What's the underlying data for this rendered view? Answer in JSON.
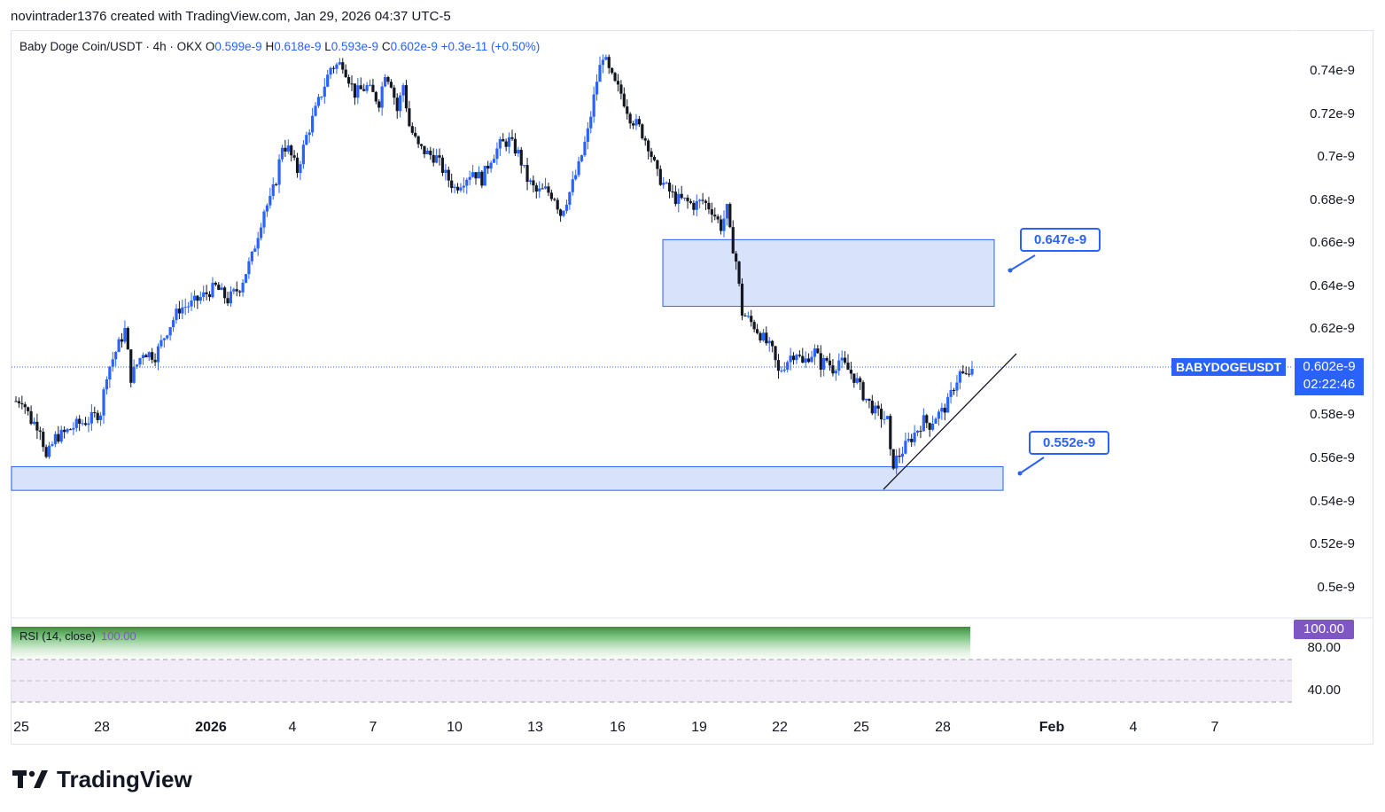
{
  "header": {
    "text": "novintrader1376 created with TradingView.com, Jan 29, 2026 04:37 UTC-5"
  },
  "legend": {
    "symbol": "Baby Doge Coin/USDT · 4h · OKX",
    "open_label": "O",
    "open": "0.599e-9",
    "high_label": "H",
    "high": "0.618e-9",
    "low_label": "L",
    "low": "0.593e-9",
    "close_label": "C",
    "close": "0.602e-9",
    "change": "+0.3e-11 (+0.50%)"
  },
  "rsi": {
    "label": "RSI (14, close)",
    "value": "100.00",
    "badge": "100.00",
    "levels": [
      "80.00",
      "40.00"
    ]
  },
  "badges": {
    "symbol": "BABYDOGEUSDT",
    "price": "0.602e-9",
    "countdown": "02:22:46"
  },
  "callouts": {
    "upper": "0.647e-9",
    "lower": "0.552e-9"
  },
  "brand": {
    "name": "TradingView"
  },
  "colors": {
    "up": "#2962ff",
    "down": "#131722",
    "zone_fill": "#d4e0fb",
    "zone_border": "#2962ff",
    "rsi_accent": "#7e57c2",
    "rsi_fill_top": "#4caf50"
  },
  "chart_data": {
    "type": "candlestick",
    "title": "Baby Doge Coin/USDT · 4h · OKX",
    "yaxis": {
      "scale": "linear",
      "ticks": [
        "0.74e-9",
        "0.72e-9",
        "0.7e-9",
        "0.68e-9",
        "0.66e-9",
        "0.64e-9",
        "0.62e-9",
        "0.6e-9",
        "0.58e-9",
        "0.56e-9",
        "0.54e-9",
        "0.52e-9",
        "0.5e-9"
      ],
      "range": [
        0.49,
        0.753
      ]
    },
    "xaxis": {
      "ticks": [
        "25",
        "28",
        "2026",
        "4",
        "7",
        "10",
        "13",
        "16",
        "19",
        "22",
        "25",
        "28",
        "Feb",
        "4",
        "7"
      ]
    },
    "close_path": [
      [
        0,
        0.587
      ],
      [
        2,
        0.588
      ],
      [
        5,
        0.578
      ],
      [
        8,
        0.575
      ],
      [
        10,
        0.56
      ],
      [
        13,
        0.57
      ],
      [
        16,
        0.572
      ],
      [
        20,
        0.576
      ],
      [
        24,
        0.578
      ],
      [
        28,
        0.582
      ],
      [
        30,
        0.6
      ],
      [
        33,
        0.61
      ],
      [
        36,
        0.62
      ],
      [
        38,
        0.598
      ],
      [
        42,
        0.61
      ],
      [
        46,
        0.608
      ],
      [
        50,
        0.62
      ],
      [
        54,
        0.63
      ],
      [
        58,
        0.632
      ],
      [
        62,
        0.636
      ],
      [
        66,
        0.64
      ],
      [
        70,
        0.634
      ],
      [
        74,
        0.64
      ],
      [
        78,
        0.654
      ],
      [
        82,
        0.676
      ],
      [
        84,
        0.68
      ],
      [
        86,
        0.69
      ],
      [
        88,
        0.706
      ],
      [
        90,
        0.704
      ],
      [
        93,
        0.694
      ],
      [
        96,
        0.71
      ],
      [
        100,
        0.726
      ],
      [
        104,
        0.742
      ],
      [
        108,
        0.744
      ],
      [
        112,
        0.73
      ],
      [
        116,
        0.733
      ],
      [
        120,
        0.726
      ],
      [
        122,
        0.74
      ],
      [
        124,
        0.735
      ],
      [
        126,
        0.722
      ],
      [
        128,
        0.734
      ],
      [
        130,
        0.715
      ],
      [
        133,
        0.705
      ],
      [
        136,
        0.702
      ],
      [
        139,
        0.7
      ],
      [
        142,
        0.692
      ],
      [
        145,
        0.686
      ],
      [
        148,
        0.69
      ],
      [
        151,
        0.694
      ],
      [
        154,
        0.69
      ],
      [
        157,
        0.7
      ],
      [
        160,
        0.706
      ],
      [
        163,
        0.708
      ],
      [
        166,
        0.702
      ],
      [
        169,
        0.69
      ],
      [
        172,
        0.684
      ],
      [
        175,
        0.685
      ],
      [
        178,
        0.682
      ],
      [
        180,
        0.674
      ],
      [
        183,
        0.684
      ],
      [
        186,
        0.696
      ],
      [
        189,
        0.712
      ],
      [
        192,
        0.736
      ],
      [
        194,
        0.748
      ],
      [
        196,
        0.74
      ],
      [
        198,
        0.734
      ],
      [
        200,
        0.73
      ],
      [
        203,
        0.719
      ],
      [
        206,
        0.714
      ],
      [
        209,
        0.706
      ],
      [
        212,
        0.692
      ],
      [
        215,
        0.686
      ],
      [
        218,
        0.681
      ],
      [
        221,
        0.68
      ],
      [
        224,
        0.678
      ],
      [
        227,
        0.68
      ],
      [
        230,
        0.676
      ],
      [
        233,
        0.668
      ],
      [
        235,
        0.676
      ],
      [
        236,
        0.665
      ],
      [
        238,
        0.652
      ],
      [
        240,
        0.628
      ],
      [
        242,
        0.625
      ],
      [
        244,
        0.622
      ],
      [
        246,
        0.618
      ],
      [
        248,
        0.614
      ],
      [
        250,
        0.61
      ],
      [
        252,
        0.6
      ],
      [
        254,
        0.604
      ],
      [
        256,
        0.608
      ],
      [
        258,
        0.61
      ],
      [
        260,
        0.604
      ],
      [
        262,
        0.608
      ],
      [
        264,
        0.61
      ],
      [
        266,
        0.604
      ],
      [
        268,
        0.606
      ],
      [
        270,
        0.602
      ],
      [
        272,
        0.606
      ],
      [
        274,
        0.603
      ],
      [
        276,
        0.6
      ],
      [
        278,
        0.596
      ],
      [
        280,
        0.59
      ],
      [
        282,
        0.586
      ],
      [
        284,
        0.582
      ],
      [
        286,
        0.58
      ],
      [
        288,
        0.578
      ],
      [
        289,
        0.562
      ],
      [
        290,
        0.558
      ],
      [
        292,
        0.562
      ],
      [
        294,
        0.566
      ],
      [
        296,
        0.57
      ],
      [
        298,
        0.574
      ],
      [
        300,
        0.578
      ],
      [
        302,
        0.576
      ],
      [
        304,
        0.58
      ],
      [
        306,
        0.582
      ],
      [
        308,
        0.586
      ],
      [
        310,
        0.594
      ],
      [
        312,
        0.6
      ],
      [
        314,
        0.598
      ],
      [
        316,
        0.602
      ]
    ],
    "zones": [
      {
        "label": "0.647e-9",
        "low": 0.631,
        "high": 0.662
      },
      {
        "label": "0.552e-9",
        "low": 0.5455,
        "high": 0.5565
      }
    ],
    "trendline": [
      [
        0.544,
        0
      ],
      [
        0.606,
        1
      ]
    ],
    "last_price": 0.602,
    "rsi_value": 100.0,
    "grid": false,
    "legend_position": "top-left"
  }
}
